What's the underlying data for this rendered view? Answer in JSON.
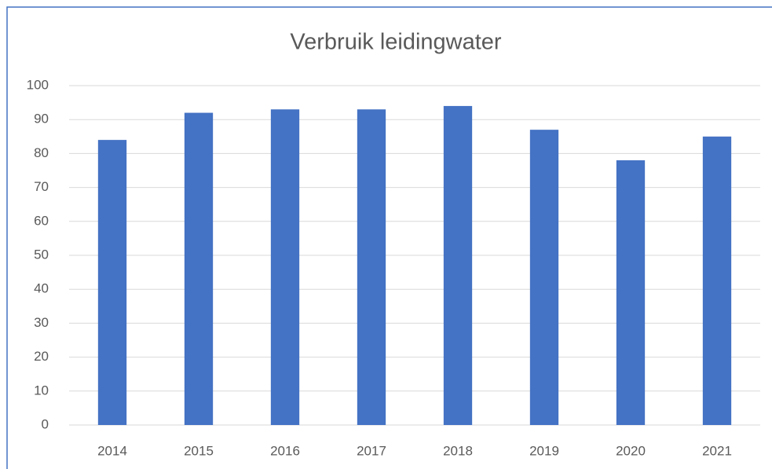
{
  "chart_data": {
    "type": "bar",
    "title": "Verbruik leidingwater",
    "categories": [
      "2014",
      "2015",
      "2016",
      "2017",
      "2018",
      "2019",
      "2020",
      "2021"
    ],
    "values": [
      84,
      92,
      93,
      93,
      94,
      87,
      78,
      85
    ],
    "color": "#4472c4",
    "ylim": [
      0,
      100
    ],
    "yticks": [
      0,
      10,
      20,
      30,
      40,
      50,
      60,
      70,
      80,
      90,
      100
    ],
    "grid": true
  }
}
